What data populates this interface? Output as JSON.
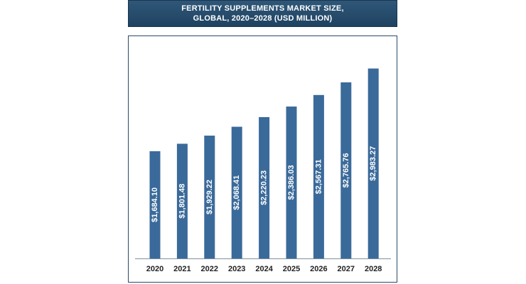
{
  "chart_data": {
    "type": "bar",
    "title_line1": "FERTILITY SUPPLEMENTS MARKET SIZE,",
    "title_line2": "GLOBAL, 2020–2028 (USD MILLION)",
    "categories": [
      "2020",
      "2021",
      "2022",
      "2023",
      "2024",
      "2025",
      "2026",
      "2027",
      "2028"
    ],
    "values": [
      1684.1,
      1801.48,
      1929.22,
      2068.41,
      2220.23,
      2386.03,
      2567.31,
      2765.76,
      2983.27
    ],
    "value_labels": [
      "$1,684.10",
      "$1,801.48",
      "$1,929.22",
      "$2,068.41",
      "$2,220.23",
      "$2,386.03",
      "$2,567.31",
      "$2,765.76",
      "$2,983.27"
    ],
    "xlabel": "",
    "ylabel": "",
    "ylim": [
      0,
      3000
    ],
    "grid": false,
    "bar_color": "#3a6a9a",
    "label_color": "#ffffff"
  }
}
